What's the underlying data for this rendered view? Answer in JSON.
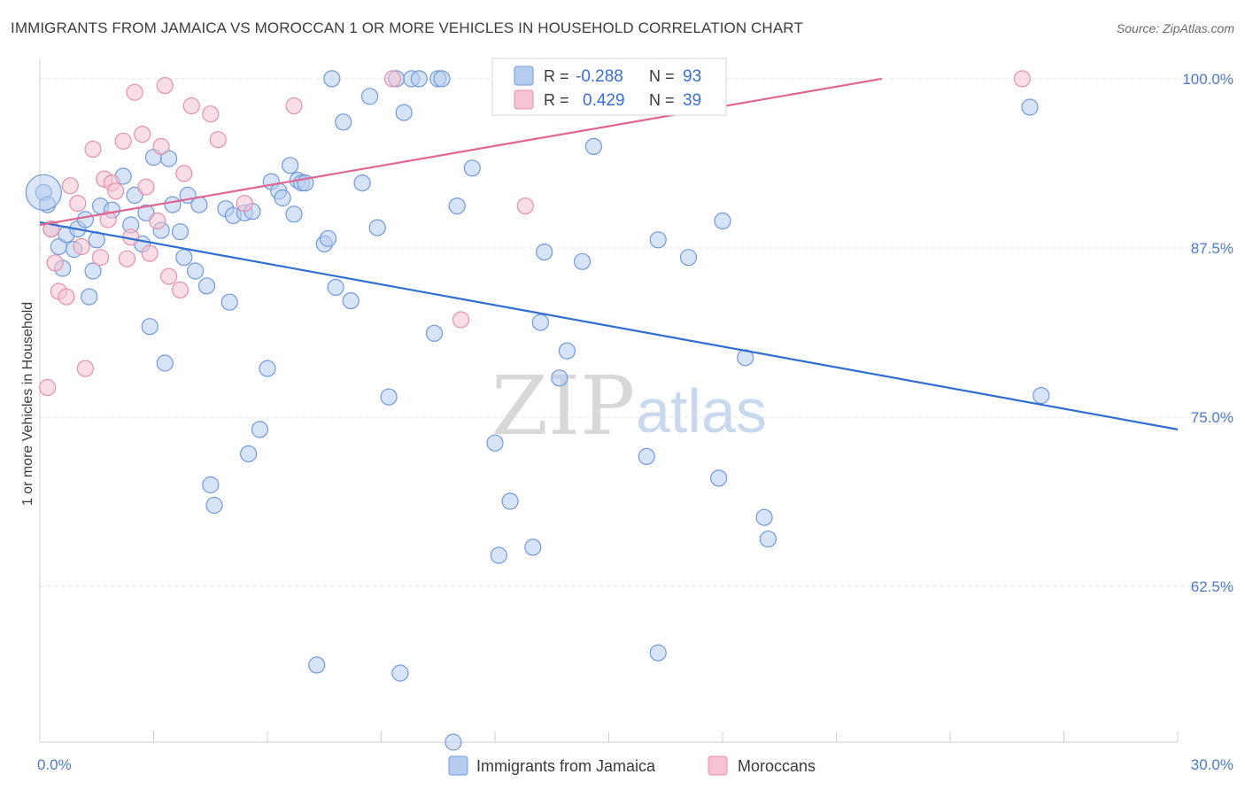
{
  "header": {
    "title": "IMMIGRANTS FROM JAMAICA VS MOROCCAN 1 OR MORE VEHICLES IN HOUSEHOLD CORRELATION CHART",
    "source": "Source: ZipAtlas.com"
  },
  "watermark": {
    "zip": "ZIP",
    "atlas": "atlas"
  },
  "colors": {
    "blue_fill": "#b6cdf0",
    "blue_stroke": "#6e9ae0",
    "blue_line": "#2f6fd1",
    "pink_fill": "#f6c3d2",
    "pink_stroke": "#e78fab",
    "pink_line": "#e0658f",
    "grid": "#e2e2e2",
    "tick_text": "#4a7bd0"
  },
  "legend": {
    "rows": [
      {
        "r_label": "R =",
        "r_value": "-0.288",
        "n_label": "N =",
        "n_value": "93"
      },
      {
        "r_label": "R =",
        "r_value": "0.429",
        "n_label": "N =",
        "n_value": "39"
      }
    ]
  },
  "chart_data": {
    "type": "scatter",
    "title": "IMMIGRANTS FROM JAMAICA VS MOROCCAN 1 OR MORE VEHICLES IN HOUSEHOLD CORRELATION CHART",
    "xlabel": "",
    "ylabel": "1 or more Vehicles in Household",
    "xlim": [
      0,
      30
    ],
    "ylim": [
      51.0,
      101.5
    ],
    "x_tick_labels": [
      {
        "value": 0,
        "label": "0.0%"
      },
      {
        "value": 30,
        "label": "30.0%"
      }
    ],
    "y_tick_labels": [
      {
        "value": 100,
        "label": "100.0%"
      },
      {
        "value": 87.5,
        "label": "87.5%"
      },
      {
        "value": 75,
        "label": "75.0%"
      },
      {
        "value": 62.5,
        "label": "62.5%"
      }
    ],
    "grid": true,
    "legend_position": "top-center",
    "series": [
      {
        "name": "Immigrants from Jamaica",
        "color": "#6e9ae0",
        "trend": {
          "x": [
            0,
            30
          ],
          "y": [
            89.4,
            74.1
          ]
        },
        "points": [
          [
            0.1,
            91.6
          ],
          [
            0.2,
            90.7
          ],
          [
            0.3,
            88.9
          ],
          [
            0.5,
            87.6
          ],
          [
            0.6,
            86.0
          ],
          [
            0.7,
            88.5
          ],
          [
            0.9,
            87.4
          ],
          [
            1.0,
            88.9
          ],
          [
            1.2,
            89.6
          ],
          [
            1.4,
            85.8
          ],
          [
            1.5,
            88.1
          ],
          [
            1.6,
            90.6
          ],
          [
            1.3,
            83.9
          ],
          [
            1.9,
            90.3
          ],
          [
            2.2,
            92.8
          ],
          [
            2.4,
            89.2
          ],
          [
            2.5,
            91.4
          ],
          [
            2.7,
            87.8
          ],
          [
            2.8,
            90.1
          ],
          [
            2.9,
            81.7
          ],
          [
            3.0,
            94.2
          ],
          [
            3.2,
            88.8
          ],
          [
            3.3,
            79.0
          ],
          [
            3.4,
            94.1
          ],
          [
            3.5,
            90.7
          ],
          [
            3.7,
            88.7
          ],
          [
            3.8,
            86.8
          ],
          [
            3.9,
            91.4
          ],
          [
            4.1,
            85.8
          ],
          [
            4.2,
            90.7
          ],
          [
            4.4,
            84.7
          ],
          [
            4.5,
            70.0
          ],
          [
            4.6,
            68.5
          ],
          [
            4.9,
            90.4
          ],
          [
            5.0,
            83.5
          ],
          [
            5.1,
            89.9
          ],
          [
            5.4,
            90.1
          ],
          [
            5.5,
            72.3
          ],
          [
            5.6,
            90.2
          ],
          [
            5.8,
            74.1
          ],
          [
            6.0,
            78.6
          ],
          [
            6.1,
            92.4
          ],
          [
            6.3,
            91.7
          ],
          [
            6.4,
            91.2
          ],
          [
            6.6,
            93.6
          ],
          [
            6.7,
            90.0
          ],
          [
            6.8,
            92.5
          ],
          [
            6.9,
            92.3
          ],
          [
            7.0,
            92.3
          ],
          [
            7.3,
            56.7
          ],
          [
            7.5,
            87.8
          ],
          [
            7.6,
            88.2
          ],
          [
            7.7,
            100.0
          ],
          [
            7.8,
            84.6
          ],
          [
            8.0,
            96.8
          ],
          [
            8.2,
            83.6
          ],
          [
            8.5,
            92.3
          ],
          [
            8.7,
            98.7
          ],
          [
            8.9,
            89.0
          ],
          [
            9.2,
            76.5
          ],
          [
            9.4,
            100.0
          ],
          [
            9.5,
            56.1
          ],
          [
            9.6,
            97.5
          ],
          [
            9.8,
            100.0
          ],
          [
            10.0,
            100.0
          ],
          [
            10.4,
            81.2
          ],
          [
            10.5,
            100.0
          ],
          [
            10.6,
            100.0
          ],
          [
            10.9,
            51.0
          ],
          [
            11.0,
            90.6
          ],
          [
            11.4,
            93.4
          ],
          [
            12.0,
            73.1
          ],
          [
            12.1,
            64.8
          ],
          [
            12.4,
            68.8
          ],
          [
            13.0,
            65.4
          ],
          [
            13.2,
            82.0
          ],
          [
            13.3,
            87.2
          ],
          [
            13.7,
            77.9
          ],
          [
            13.9,
            79.9
          ],
          [
            14.3,
            86.5
          ],
          [
            14.6,
            95.0
          ],
          [
            15.1,
            100.0
          ],
          [
            16.0,
            72.1
          ],
          [
            16.3,
            88.1
          ],
          [
            17.1,
            86.8
          ],
          [
            17.9,
            70.5
          ],
          [
            18.0,
            89.5
          ],
          [
            18.6,
            79.4
          ],
          [
            19.1,
            67.6
          ],
          [
            19.2,
            66.0
          ],
          [
            16.3,
            57.6
          ],
          [
            26.1,
            97.9
          ],
          [
            26.4,
            76.6
          ]
        ]
      },
      {
        "name": "Moroccans",
        "color": "#e78fab",
        "trend": {
          "x": [
            0,
            22.2
          ],
          "y": [
            89.2,
            100.0
          ]
        },
        "points": [
          [
            0.2,
            77.2
          ],
          [
            0.3,
            88.9
          ],
          [
            0.4,
            86.4
          ],
          [
            0.5,
            84.3
          ],
          [
            0.7,
            83.9
          ],
          [
            0.8,
            92.1
          ],
          [
            1.0,
            90.8
          ],
          [
            1.1,
            87.6
          ],
          [
            1.2,
            78.6
          ],
          [
            1.4,
            94.8
          ],
          [
            1.6,
            86.8
          ],
          [
            1.7,
            92.6
          ],
          [
            1.8,
            89.6
          ],
          [
            1.9,
            92.3
          ],
          [
            2.0,
            91.7
          ],
          [
            2.2,
            95.4
          ],
          [
            2.3,
            86.7
          ],
          [
            2.4,
            88.3
          ],
          [
            2.5,
            99.0
          ],
          [
            2.7,
            95.9
          ],
          [
            2.8,
            92.0
          ],
          [
            2.9,
            87.1
          ],
          [
            3.1,
            89.5
          ],
          [
            3.2,
            95.0
          ],
          [
            3.3,
            99.5
          ],
          [
            3.4,
            85.4
          ],
          [
            3.7,
            84.4
          ],
          [
            3.8,
            93.0
          ],
          [
            4.0,
            98.0
          ],
          [
            4.5,
            97.4
          ],
          [
            4.7,
            95.5
          ],
          [
            5.4,
            90.8
          ],
          [
            6.7,
            98.0
          ],
          [
            9.3,
            100.0
          ],
          [
            11.1,
            82.2
          ],
          [
            12.3,
            100.0
          ],
          [
            12.8,
            90.6
          ],
          [
            16.1,
            100.0
          ],
          [
            25.9,
            100.0
          ]
        ]
      }
    ]
  },
  "bottom_legend": [
    {
      "label": "Immigrants from Jamaica"
    },
    {
      "label": "Moroccans"
    }
  ]
}
